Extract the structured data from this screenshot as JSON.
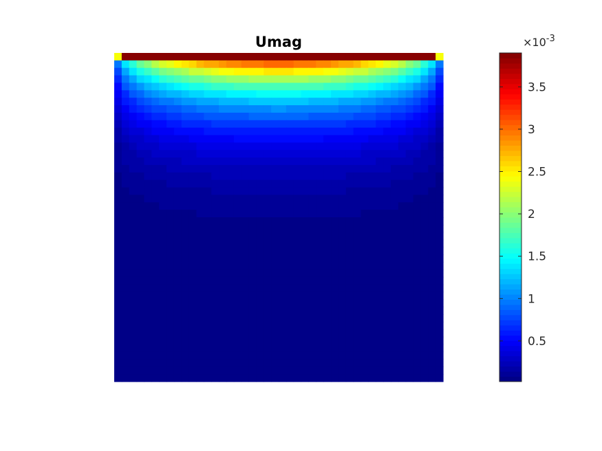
{
  "chart_data": {
    "type": "heatmap",
    "title": "Umag",
    "xlabel": "",
    "ylabel": "",
    "colormap": "jet",
    "grid_size": [
      44,
      44
    ],
    "value_range": [
      2e-05,
      0.0039
    ],
    "colorbar": {
      "multiplier_prefix": "×10",
      "multiplier_exponent": "-3",
      "ticks": [
        0.5,
        1,
        1.5,
        2,
        2.5,
        3,
        3.5
      ],
      "tick_labels": [
        "0.5",
        "1",
        "1.5",
        "2",
        "2.5",
        "3",
        "3.5"
      ],
      "range": [
        0.02,
        3.9
      ]
    },
    "description_values": {
      "top_row_max": 0.0039,
      "corner_value": 0.0024,
      "bottom_region": 2e-05
    }
  }
}
